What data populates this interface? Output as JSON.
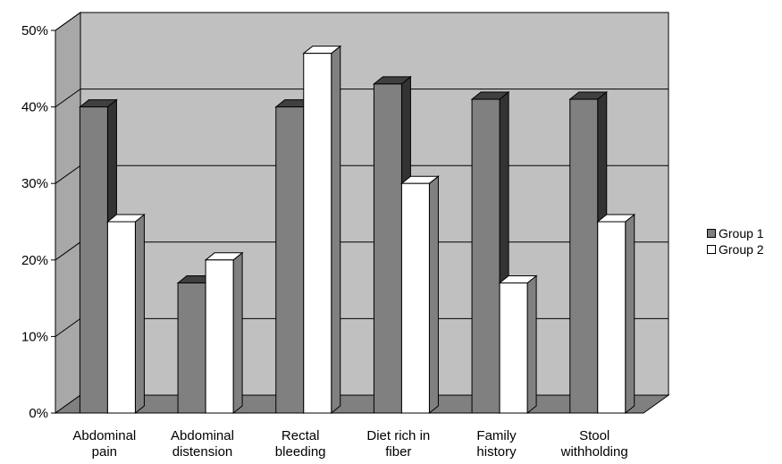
{
  "chart_data": {
    "type": "bar",
    "title": "",
    "xlabel": "",
    "ylabel": "",
    "categories": [
      [
        "Abdominal",
        "pain"
      ],
      [
        "Abdominal",
        "distension"
      ],
      [
        "Rectal",
        "bleeding"
      ],
      [
        "Diet rich in",
        "fiber"
      ],
      [
        "Family",
        "history"
      ],
      [
        "Stool",
        "withholding"
      ]
    ],
    "series": [
      {
        "name": "Group 1",
        "values": [
          40,
          17,
          40,
          43,
          41,
          41
        ],
        "color": "#808080",
        "side_color": "#333333",
        "top_color": "#404040"
      },
      {
        "name": "Group 2",
        "values": [
          25,
          20,
          47,
          30,
          17,
          25
        ],
        "color": "#ffffff",
        "side_color": "#808080",
        "top_color": "#ffffff"
      }
    ],
    "ylim": [
      0,
      50
    ],
    "yticks": [
      "0%",
      "10%",
      "20%",
      "30%",
      "40%",
      "50%"
    ],
    "grid": true,
    "legend_position": "right",
    "style": "3d-clustered-column",
    "wall_color": "#c0c0c0",
    "floor_color": "#808080"
  },
  "legend": {
    "items": [
      "Group 1",
      "Group 2"
    ]
  }
}
